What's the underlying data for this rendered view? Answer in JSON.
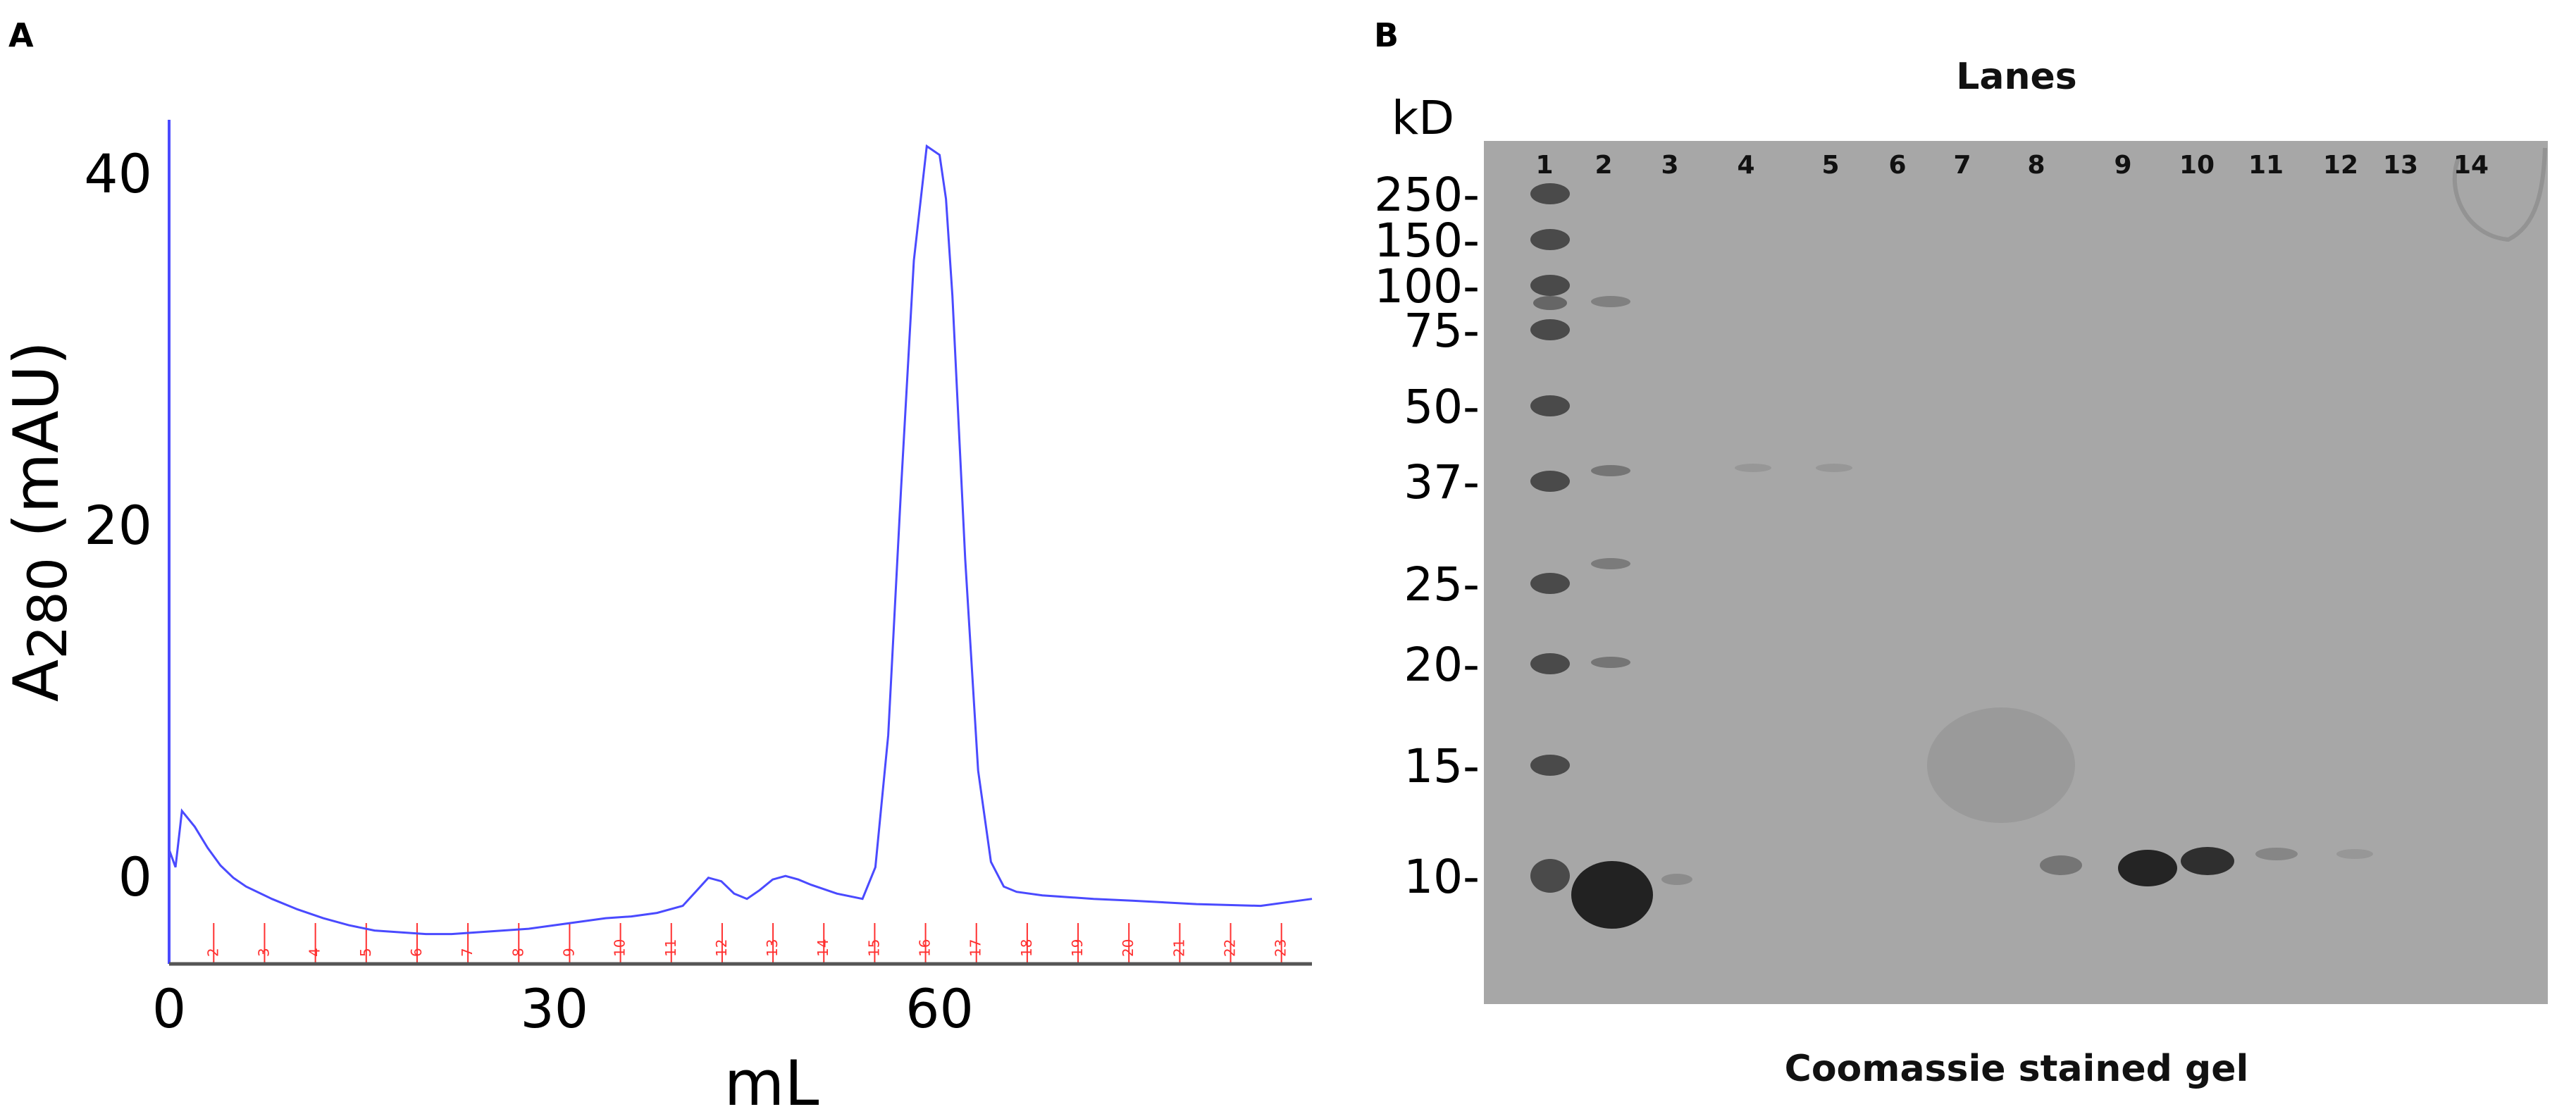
{
  "panel_a_label": "A",
  "panel_b_label": "B",
  "chart_data": [
    {
      "type": "line",
      "xlabel": "mL",
      "ylabel_main": "A",
      "ylabel_sub": "280",
      "ylabel_rest": " (mAU)",
      "xlim": [
        0,
        89
      ],
      "ylim": [
        -5,
        43
      ],
      "xticks": [
        0,
        30,
        60
      ],
      "yticks": [
        0,
        20,
        40
      ],
      "series": [
        {
          "color": "#4a4aff",
          "x": [
            0,
            0.5,
            1,
            2,
            3,
            4,
            5,
            6,
            8,
            10,
            12,
            14,
            16,
            18,
            20,
            22,
            24,
            26,
            28,
            30,
            32,
            34,
            36,
            38,
            40,
            41,
            42,
            43,
            44,
            45,
            46,
            47,
            48,
            49,
            50,
            52,
            54,
            55,
            56,
            57,
            58,
            59,
            60,
            60.5,
            61,
            62,
            63,
            64,
            65,
            66,
            68,
            70,
            72,
            75,
            80,
            85,
            89
          ],
          "values": [
            1.5,
            0.5,
            3.7,
            2.8,
            1.6,
            0.6,
            -0.1,
            -0.6,
            -1.3,
            -1.9,
            -2.4,
            -2.8,
            -3.1,
            -3.2,
            -3.3,
            -3.3,
            -3.2,
            -3.1,
            -3.0,
            -2.8,
            -2.6,
            -2.4,
            -2.3,
            -2.1,
            -1.7,
            -0.9,
            -0.1,
            -0.3,
            -1.0,
            -1.3,
            -0.8,
            -0.2,
            0.0,
            -0.2,
            -0.5,
            -1.0,
            -1.3,
            0.5,
            8.0,
            22.0,
            35.0,
            41.5,
            41.0,
            38.5,
            33.0,
            18.0,
            6.0,
            0.8,
            -0.6,
            -0.9,
            -1.1,
            -1.2,
            -1.3,
            -1.4,
            -1.6,
            -1.7,
            -1.3
          ]
        }
      ],
      "fractions": [
        "2",
        "3",
        "4",
        "5",
        "6",
        "7",
        "8",
        "9",
        "10",
        "11",
        "12",
        "13",
        "14",
        "15",
        "16",
        "17",
        "18",
        "19",
        "20",
        "21",
        "22",
        "23"
      ],
      "fraction_marker_color": "#ff3030"
    }
  ],
  "gel": {
    "title": "Lanes",
    "caption": "Coomassie stained gel",
    "mw_unit": "kD",
    "lanes": [
      "1",
      "2",
      "3",
      "4",
      "5",
      "6",
      "7",
      "8",
      "9",
      "10",
      "11",
      "12",
      "13",
      "14"
    ],
    "markers": [
      "250-",
      "150-",
      "100-",
      "75-",
      "50-",
      "37-",
      "25-",
      "20-",
      "15-",
      "10-"
    ],
    "background_color": "#a7a7a7",
    "band_color": "#3a3a3a"
  }
}
